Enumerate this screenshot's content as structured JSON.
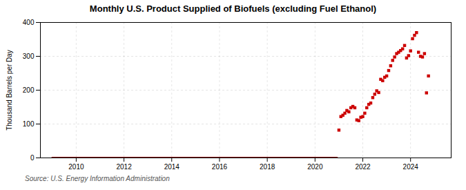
{
  "chart_data": {
    "type": "scatter",
    "title": "Monthly U.S. Product Supplied of Biofuels (excluding Fuel Ethanol)",
    "ylabel": "Thousand Barrels per Day",
    "source": "Source: U.S. Energy Information Administration",
    "xlim": [
      2008.5,
      2025.7
    ],
    "xticks": [
      2010,
      2012,
      2014,
      2016,
      2018,
      2020,
      2022,
      2024
    ],
    "ylim": [
      0,
      400
    ],
    "yticks": [
      0,
      100,
      200,
      300,
      400
    ],
    "grid": true,
    "x": [
      2009.0,
      2009.083,
      2009.167,
      2009.25,
      2009.333,
      2009.417,
      2009.5,
      2009.583,
      2009.667,
      2009.75,
      2009.833,
      2009.917,
      2010.0,
      2010.083,
      2010.167,
      2010.25,
      2010.333,
      2010.417,
      2010.5,
      2010.583,
      2010.667,
      2010.75,
      2010.833,
      2010.917,
      2011.0,
      2011.083,
      2011.167,
      2011.25,
      2011.333,
      2011.417,
      2011.5,
      2011.583,
      2011.667,
      2011.75,
      2011.833,
      2011.917,
      2012.0,
      2012.083,
      2012.167,
      2012.25,
      2012.333,
      2012.417,
      2012.5,
      2012.583,
      2012.667,
      2012.75,
      2012.833,
      2012.917,
      2013.0,
      2013.083,
      2013.167,
      2013.25,
      2013.333,
      2013.417,
      2013.5,
      2013.583,
      2013.667,
      2013.75,
      2013.833,
      2013.917,
      2014.0,
      2014.083,
      2014.167,
      2014.25,
      2014.333,
      2014.417,
      2014.5,
      2014.583,
      2014.667,
      2014.75,
      2014.833,
      2014.917,
      2015.0,
      2015.083,
      2015.167,
      2015.25,
      2015.333,
      2015.417,
      2015.5,
      2015.583,
      2015.667,
      2015.75,
      2015.833,
      2015.917,
      2016.0,
      2016.083,
      2016.167,
      2016.25,
      2016.333,
      2016.417,
      2016.5,
      2016.583,
      2016.667,
      2016.75,
      2016.833,
      2016.917,
      2017.0,
      2017.083,
      2017.167,
      2017.25,
      2017.333,
      2017.417,
      2017.5,
      2017.583,
      2017.667,
      2017.75,
      2017.833,
      2017.917,
      2018.0,
      2018.083,
      2018.167,
      2018.25,
      2018.333,
      2018.417,
      2018.5,
      2018.583,
      2018.667,
      2018.75,
      2018.833,
      2018.917,
      2019.0,
      2019.083,
      2019.167,
      2019.25,
      2019.333,
      2019.417,
      2019.5,
      2019.583,
      2019.667,
      2019.75,
      2019.833,
      2019.917,
      2020.0,
      2020.083,
      2020.167,
      2020.25,
      2020.333,
      2020.417,
      2020.5,
      2020.583,
      2020.667,
      2020.75,
      2020.833,
      2020.917,
      2021.0,
      2021.083,
      2021.167,
      2021.25,
      2021.333,
      2021.417,
      2021.5,
      2021.583,
      2021.667,
      2021.75,
      2021.833,
      2021.917,
      2022.0,
      2022.083,
      2022.167,
      2022.25,
      2022.333,
      2022.417,
      2022.5,
      2022.583,
      2022.667,
      2022.75,
      2022.833,
      2022.917,
      2023.0,
      2023.083,
      2023.167,
      2023.25,
      2023.333,
      2023.417,
      2023.5,
      2023.583,
      2023.667,
      2023.75,
      2023.833,
      2023.917,
      2024.0,
      2024.083,
      2024.167,
      2024.25,
      2024.333,
      2024.417,
      2024.5,
      2024.583,
      2024.667,
      2024.75
    ],
    "series": [
      {
        "type": "line",
        "color": "#8b0000",
        "line_style": "solid",
        "values": [
          0,
          0,
          0,
          0,
          0,
          0,
          0,
          0,
          0,
          0,
          0,
          0,
          0,
          0,
          0,
          0,
          0,
          0,
          0,
          0,
          0,
          0,
          0,
          0,
          0,
          0,
          0,
          0,
          0,
          0,
          0,
          0,
          0,
          0,
          0,
          0,
          0,
          0,
          0,
          0,
          0,
          0,
          0,
          0,
          0,
          0,
          0,
          0,
          0,
          0,
          0,
          0,
          0,
          0,
          0,
          0,
          0,
          0,
          0,
          0,
          0,
          0,
          0,
          0,
          0,
          0,
          0,
          0,
          0,
          0,
          0,
          0,
          0,
          0,
          0,
          0,
          0,
          0,
          0,
          0,
          0,
          0,
          0,
          0,
          0,
          0,
          0,
          0,
          0,
          0,
          0,
          0,
          0,
          0,
          0,
          0,
          0,
          0,
          0,
          0,
          0,
          0,
          0,
          0,
          0,
          0,
          0,
          0,
          0,
          0,
          0,
          0,
          0,
          0,
          0,
          0,
          0,
          0,
          0,
          0,
          0,
          0,
          0,
          0,
          0,
          0,
          0,
          0,
          0,
          0,
          0,
          0,
          0,
          0,
          0,
          0,
          0,
          0,
          0,
          0,
          0,
          0,
          0,
          0,
          null,
          null,
          null,
          null,
          null,
          null,
          null,
          null,
          null,
          null,
          null,
          null,
          null,
          null,
          null,
          null,
          null,
          null,
          null,
          null,
          null,
          null,
          null,
          null,
          null,
          null,
          null,
          null,
          null,
          null,
          null,
          null,
          null,
          null,
          null,
          null,
          null,
          null,
          null,
          null,
          null,
          null,
          null,
          null,
          null,
          null
        ]
      },
      {
        "type": "scatter",
        "color": "#cc0000",
        "marker": "square",
        "values": [
          null,
          null,
          null,
          null,
          null,
          null,
          null,
          null,
          null,
          null,
          null,
          null,
          null,
          null,
          null,
          null,
          null,
          null,
          null,
          null,
          null,
          null,
          null,
          null,
          null,
          null,
          null,
          null,
          null,
          null,
          null,
          null,
          null,
          null,
          null,
          null,
          null,
          null,
          null,
          null,
          null,
          null,
          null,
          null,
          null,
          null,
          null,
          null,
          null,
          null,
          null,
          null,
          null,
          null,
          null,
          null,
          null,
          null,
          null,
          null,
          null,
          null,
          null,
          null,
          null,
          null,
          null,
          null,
          null,
          null,
          null,
          null,
          null,
          null,
          null,
          null,
          null,
          null,
          null,
          null,
          null,
          null,
          null,
          null,
          null,
          null,
          null,
          null,
          null,
          null,
          null,
          null,
          null,
          null,
          null,
          null,
          null,
          null,
          null,
          null,
          null,
          null,
          null,
          null,
          null,
          null,
          null,
          null,
          null,
          null,
          null,
          null,
          null,
          null,
          null,
          null,
          null,
          null,
          null,
          null,
          null,
          null,
          null,
          null,
          null,
          null,
          null,
          null,
          null,
          null,
          null,
          null,
          null,
          null,
          null,
          null,
          null,
          null,
          null,
          null,
          null,
          null,
          null,
          null,
          82,
          122,
          126,
          132,
          140,
          136,
          148,
          152,
          148,
          112,
          110,
          120,
          122,
          132,
          148,
          158,
          162,
          178,
          188,
          198,
          193,
          232,
          228,
          238,
          242,
          258,
          272,
          288,
          298,
          308,
          312,
          317,
          322,
          332,
          295,
          302,
          316,
          352,
          362,
          370,
          312,
          300,
          298,
          308,
          192,
          242
        ]
      }
    ]
  }
}
